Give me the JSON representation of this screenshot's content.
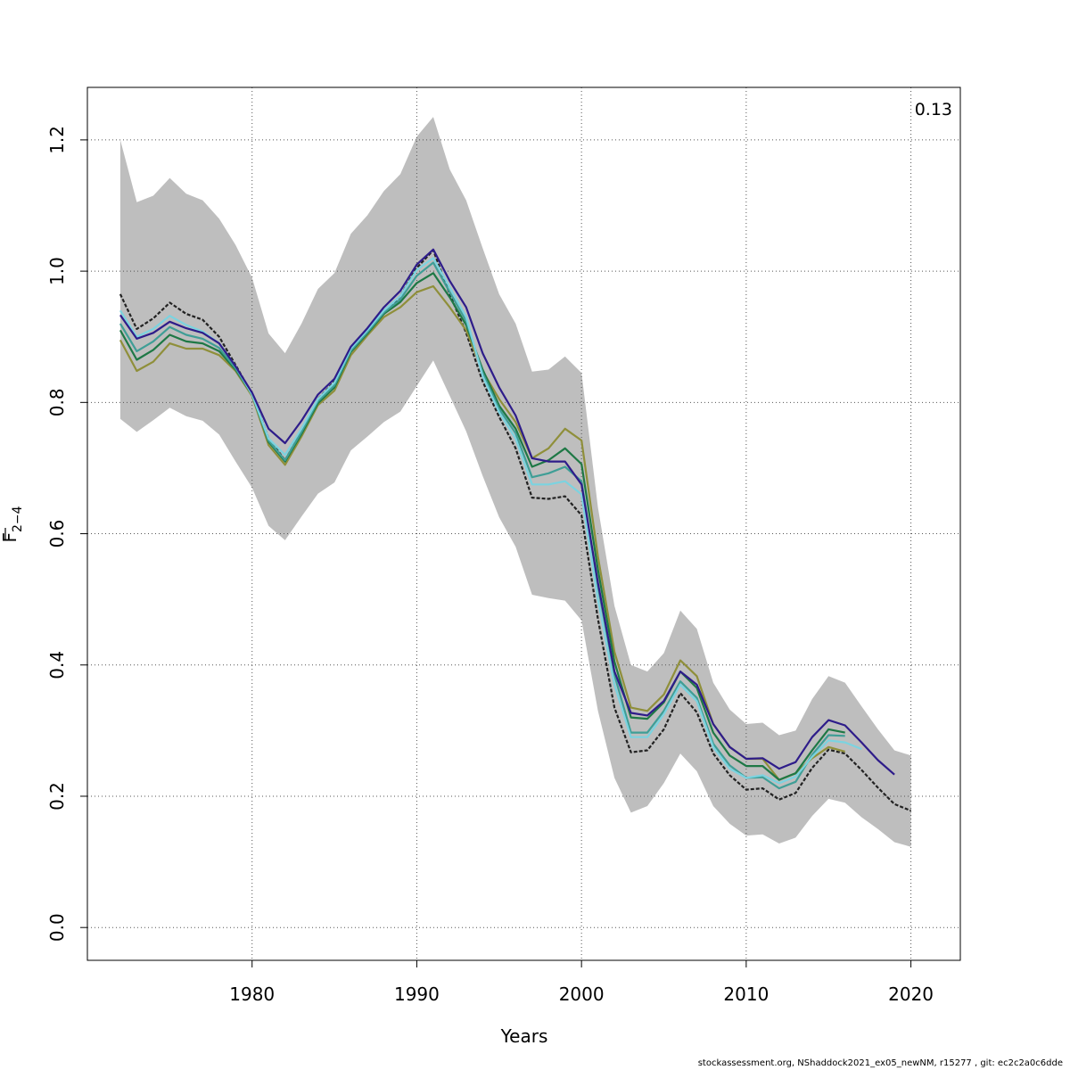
{
  "chart_data": {
    "type": "line",
    "title": "",
    "xlabel": "Years",
    "ylabel_main": "F",
    "ylabel_sub": "2−4",
    "xlim": [
      1970,
      2023
    ],
    "ylim": [
      -0.05,
      1.28
    ],
    "xticks": [
      1980,
      1990,
      2000,
      2010,
      2020
    ],
    "yticks": [
      0.0,
      0.2,
      0.4,
      0.6,
      0.8,
      1.0,
      1.2
    ],
    "ytick_labels": [
      "0.0",
      "0.2",
      "0.4",
      "0.6",
      "0.8",
      "1.0",
      "1.2"
    ],
    "grid": true,
    "annotation": "0.13",
    "band": {
      "color": "#bebebe",
      "x": [
        1972,
        1973,
        1974,
        1975,
        1976,
        1977,
        1978,
        1979,
        1980,
        1981,
        1982,
        1983,
        1984,
        1985,
        1986,
        1987,
        1988,
        1989,
        1990,
        1991,
        1992,
        1993,
        1994,
        1995,
        1996,
        1997,
        1998,
        1999,
        2000,
        2001,
        2002,
        2003,
        2004,
        2005,
        2006,
        2007,
        2008,
        2009,
        2010,
        2011,
        2012,
        2013,
        2014,
        2015,
        2016,
        2017,
        2018,
        2019,
        2020
      ],
      "upper": [
        1.2,
        1.105,
        1.115,
        1.142,
        1.118,
        1.108,
        1.08,
        1.04,
        0.99,
        0.905,
        0.875,
        0.92,
        0.973,
        0.997,
        1.057,
        1.085,
        1.122,
        1.148,
        1.205,
        1.235,
        1.155,
        1.108,
        1.035,
        0.965,
        0.92,
        0.847,
        0.85,
        0.87,
        0.845,
        0.64,
        0.49,
        0.4,
        0.39,
        0.418,
        0.483,
        0.455,
        0.373,
        0.332,
        0.31,
        0.312,
        0.293,
        0.3,
        0.348,
        0.383,
        0.373,
        0.337,
        0.302,
        0.27,
        0.262
      ],
      "lower": [
        0.775,
        0.755,
        0.773,
        0.792,
        0.779,
        0.772,
        0.751,
        0.71,
        0.67,
        0.612,
        0.59,
        0.626,
        0.661,
        0.678,
        0.727,
        0.748,
        0.77,
        0.786,
        0.825,
        0.864,
        0.81,
        0.756,
        0.688,
        0.625,
        0.58,
        0.507,
        0.502,
        0.498,
        0.468,
        0.33,
        0.228,
        0.175,
        0.185,
        0.22,
        0.265,
        0.238,
        0.185,
        0.158,
        0.14,
        0.142,
        0.128,
        0.137,
        0.17,
        0.196,
        0.19,
        0.168,
        0.15,
        0.13,
        0.123
      ]
    },
    "series": [
      {
        "color": "#222222",
        "dashed": true,
        "end_year": 2020,
        "values": [
          0.965,
          0.912,
          0.928,
          0.952,
          0.935,
          0.926,
          0.9,
          0.857,
          0.813,
          0.745,
          0.712,
          0.755,
          0.805,
          0.832,
          0.882,
          0.908,
          0.935,
          0.962,
          1.005,
          1.032,
          0.965,
          0.906,
          0.832,
          0.778,
          0.73,
          0.655,
          0.653,
          0.657,
          0.628,
          0.47,
          0.335,
          0.267,
          0.27,
          0.302,
          0.357,
          0.328,
          0.265,
          0.232,
          0.21,
          0.212,
          0.195,
          0.205,
          0.243,
          0.271,
          0.265,
          0.24,
          0.213,
          0.188,
          0.178
        ]
      },
      {
        "color": "#8f8f3a",
        "dashed": false,
        "end_year": 2016,
        "values": [
          0.895,
          0.848,
          0.862,
          0.89,
          0.882,
          0.882,
          0.872,
          0.848,
          0.81,
          0.735,
          0.705,
          0.748,
          0.796,
          0.818,
          0.872,
          0.902,
          0.93,
          0.945,
          0.968,
          0.977,
          0.945,
          0.91,
          0.848,
          0.805,
          0.77,
          0.715,
          0.73,
          0.76,
          0.742,
          0.565,
          0.42,
          0.335,
          0.33,
          0.355,
          0.407,
          0.383,
          0.31,
          0.275,
          0.257,
          0.257,
          0.225,
          0.235,
          0.258,
          0.275,
          0.268
        ]
      },
      {
        "color": "#1e7845",
        "dashed": false,
        "end_year": 2016,
        "values": [
          0.91,
          0.865,
          0.88,
          0.903,
          0.893,
          0.89,
          0.878,
          0.85,
          0.812,
          0.74,
          0.71,
          0.752,
          0.799,
          0.823,
          0.877,
          0.905,
          0.935,
          0.953,
          0.982,
          0.997,
          0.96,
          0.918,
          0.85,
          0.795,
          0.76,
          0.702,
          0.712,
          0.73,
          0.706,
          0.545,
          0.405,
          0.32,
          0.318,
          0.343,
          0.39,
          0.365,
          0.297,
          0.262,
          0.246,
          0.246,
          0.225,
          0.235,
          0.27,
          0.302,
          0.297
        ]
      },
      {
        "color": "#3f9e96",
        "dashed": false,
        "end_year": 2016,
        "values": [
          0.92,
          0.878,
          0.893,
          0.915,
          0.903,
          0.897,
          0.883,
          0.852,
          0.812,
          0.742,
          0.712,
          0.755,
          0.802,
          0.826,
          0.879,
          0.907,
          0.937,
          0.957,
          0.993,
          1.013,
          0.968,
          0.924,
          0.845,
          0.79,
          0.753,
          0.686,
          0.692,
          0.702,
          0.68,
          0.52,
          0.385,
          0.297,
          0.297,
          0.33,
          0.375,
          0.35,
          0.28,
          0.247,
          0.228,
          0.229,
          0.212,
          0.222,
          0.263,
          0.293,
          0.292
        ]
      },
      {
        "color": "#7bd3e0",
        "dashed": false,
        "end_year": 2017,
        "values": [
          0.94,
          0.9,
          0.912,
          0.932,
          0.918,
          0.908,
          0.89,
          0.855,
          0.812,
          0.745,
          0.72,
          0.76,
          0.805,
          0.83,
          0.882,
          0.91,
          0.94,
          0.962,
          1.002,
          1.02,
          0.975,
          0.93,
          0.84,
          0.785,
          0.745,
          0.675,
          0.675,
          0.68,
          0.66,
          0.5,
          0.37,
          0.29,
          0.29,
          0.325,
          0.37,
          0.345,
          0.275,
          0.242,
          0.228,
          0.232,
          0.22,
          0.23,
          0.26,
          0.285,
          0.282,
          0.272
        ]
      },
      {
        "color": "#2e1c8a",
        "dashed": false,
        "end_year": 2019,
        "values": [
          0.933,
          0.897,
          0.906,
          0.923,
          0.913,
          0.906,
          0.89,
          0.855,
          0.815,
          0.76,
          0.738,
          0.772,
          0.812,
          0.836,
          0.885,
          0.913,
          0.945,
          0.97,
          1.01,
          1.033,
          0.985,
          0.945,
          0.875,
          0.823,
          0.78,
          0.715,
          0.71,
          0.71,
          0.675,
          0.525,
          0.39,
          0.327,
          0.323,
          0.345,
          0.39,
          0.37,
          0.31,
          0.275,
          0.257,
          0.258,
          0.242,
          0.252,
          0.29,
          0.316,
          0.308,
          0.282,
          0.255,
          0.233
        ]
      }
    ]
  },
  "footer": {
    "text": "stockassessment.org, NShaddock2021_ex05_newNM, r15277 , git: ec2c2a0c6dde"
  }
}
